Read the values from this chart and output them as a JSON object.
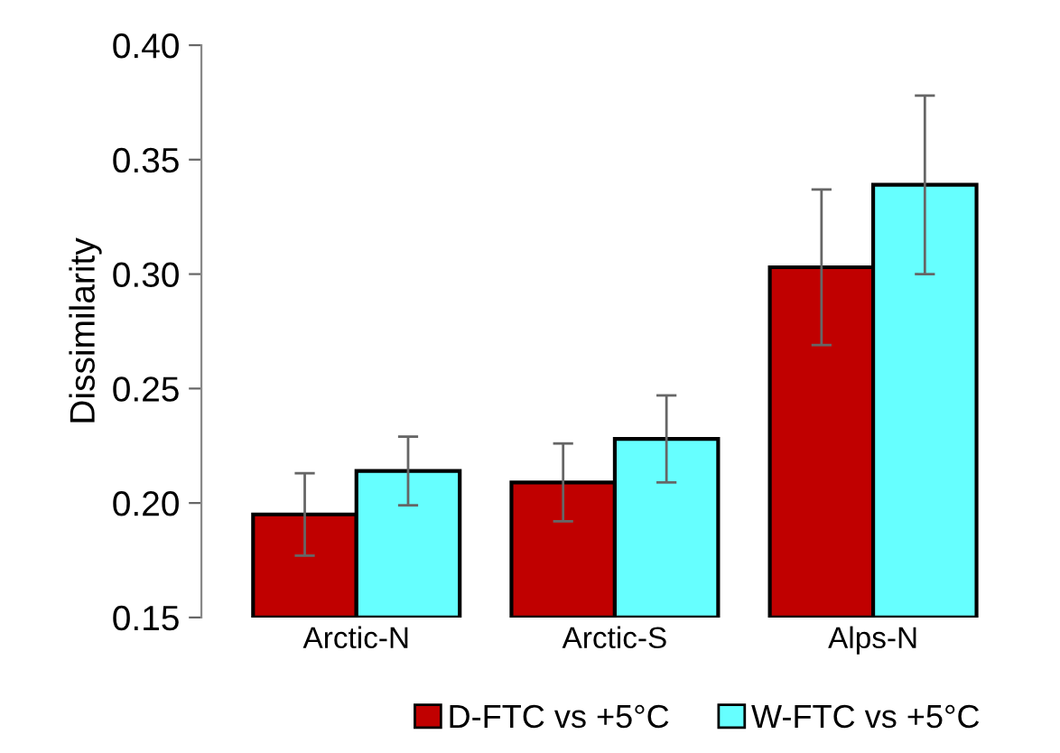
{
  "chart_data": {
    "type": "bar",
    "ylabel": "Dissimilarity",
    "categories": [
      "Arctic-N",
      "Arctic-S",
      "Alps-N"
    ],
    "series": [
      {
        "name": "D-FTC vs +5°C",
        "color": "#c00000",
        "values": [
          0.195,
          0.209,
          0.303
        ],
        "errors": [
          0.018,
          0.017,
          0.034
        ]
      },
      {
        "name": "W-FTC vs +5°C",
        "color": "#66ffff",
        "values": [
          0.214,
          0.228,
          0.339
        ],
        "errors": [
          0.015,
          0.019,
          0.039
        ]
      }
    ],
    "ylim": [
      0.15,
      0.4
    ],
    "yticks": [
      {
        "value": 0.15,
        "label": "0.15"
      },
      {
        "value": 0.2,
        "label": "0.20"
      },
      {
        "value": 0.25,
        "label": "0.25"
      },
      {
        "value": 0.3,
        "label": "0.30"
      },
      {
        "value": 0.35,
        "label": "0.35"
      },
      {
        "value": 0.4,
        "label": "0.40"
      }
    ],
    "grid": false,
    "legend": "bottom"
  }
}
